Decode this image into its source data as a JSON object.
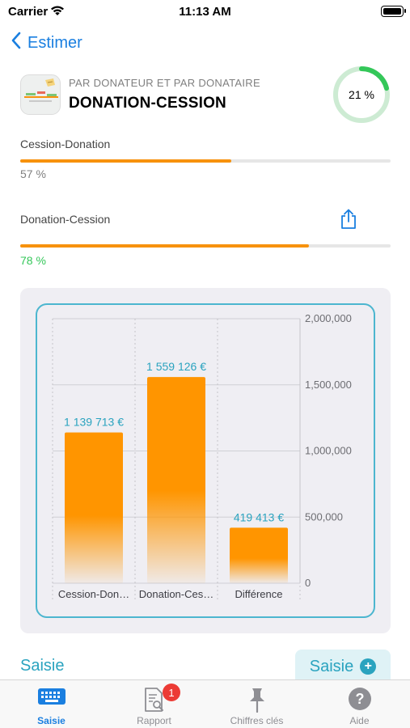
{
  "status_bar": {
    "carrier": "Carrier",
    "time": "11:13 AM"
  },
  "nav": {
    "back_label": "Estimer"
  },
  "header": {
    "subtitle": "PAR DONATEUR ET PAR DONATAIRE",
    "title": "DONATION-CESSION",
    "ring_value": "21 %",
    "ring_fraction": 0.21
  },
  "progress": [
    {
      "label": "Cession-Donation",
      "value_text": "57 %",
      "fraction": 0.57,
      "value_color": "#7f7f7f"
    },
    {
      "label": "Donation-Cession",
      "value_text": "78 %",
      "fraction": 0.78,
      "value_color": "#34c759"
    }
  ],
  "chart_data": {
    "type": "bar",
    "categories": [
      "Cession-Don…",
      "Donation-Ces…",
      "Différence"
    ],
    "values": [
      1139713,
      1559126,
      419413
    ],
    "data_labels": [
      "1 139 713 €",
      "1 559 126 €",
      "419 413 €"
    ],
    "ylim": [
      0,
      2000000
    ],
    "y_ticks": [
      0,
      500000,
      1000000,
      1500000,
      2000000
    ],
    "y_tick_labels": [
      "0",
      "500,000",
      "1,000,000",
      "1,500,000",
      "2,000,000"
    ],
    "y_axis_position": "right",
    "grid": true,
    "bar_color": "#ff9500",
    "label_color": "#2aa3bf"
  },
  "actions": {
    "link_label": "Saisie",
    "button_label": "Saisie",
    "button_icon": "plus-circle-icon"
  },
  "tabs": [
    {
      "label": "Saisie",
      "icon": "keyboard-icon",
      "active": true
    },
    {
      "label": "Rapport",
      "icon": "report-search-icon",
      "badge": "1"
    },
    {
      "label": "Chiffres clés",
      "icon": "pin-icon"
    },
    {
      "label": "Aide",
      "icon": "help-icon"
    }
  ],
  "colors": {
    "accent": "#1a7fe0",
    "orange": "#f7920d",
    "teal": "#2aa3bf",
    "green": "#34c759"
  }
}
